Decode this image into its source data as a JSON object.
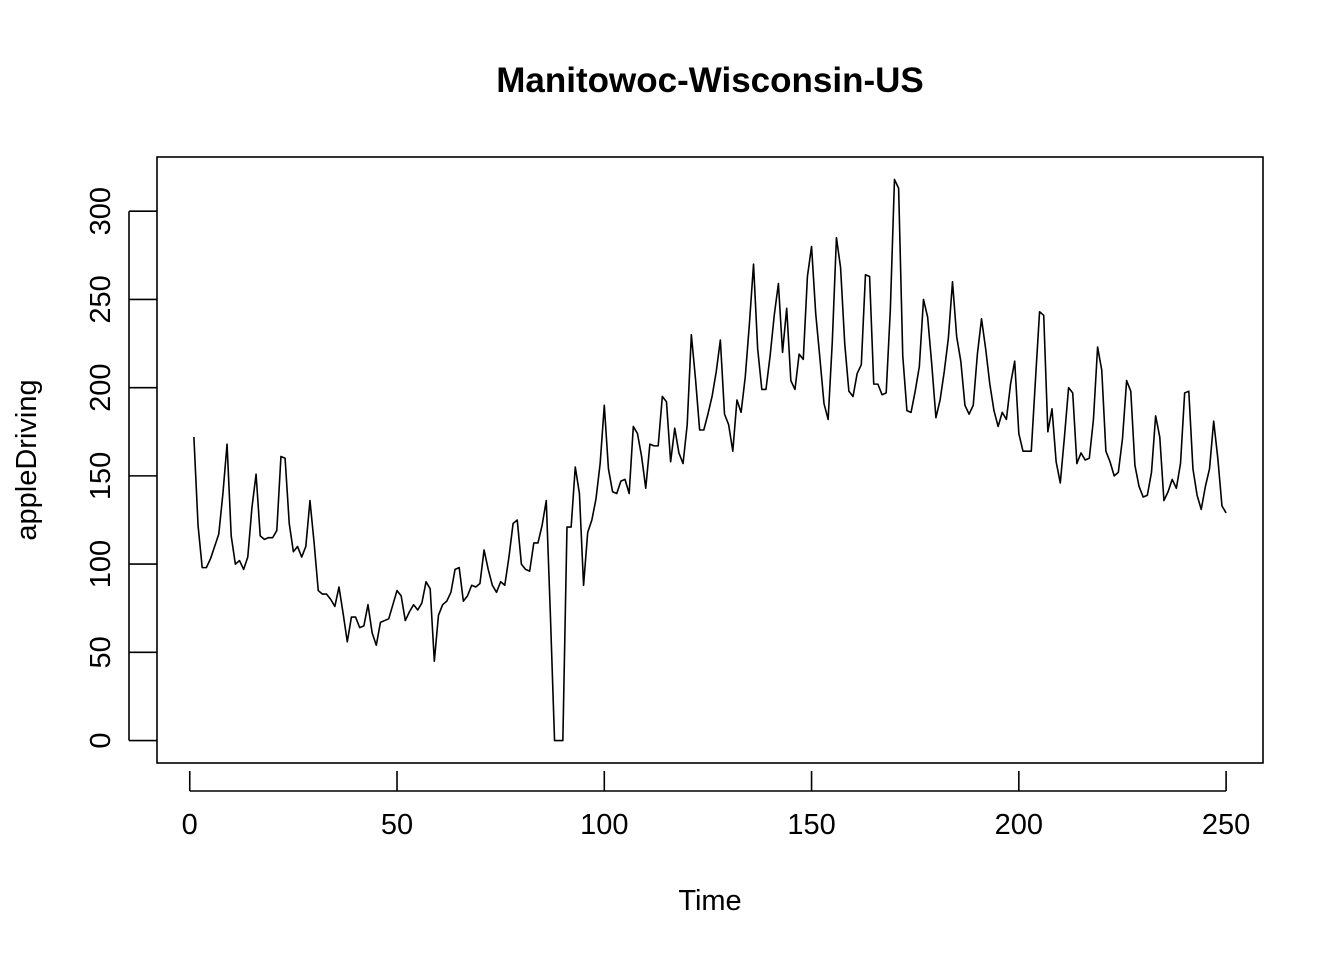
{
  "chart_data": {
    "type": "line",
    "title": "Manitowoc-Wisconsin-US",
    "xlabel": "Time",
    "ylabel": "appleDriving",
    "xlim": [
      -7.9,
      258.9
    ],
    "ylim": [
      -12.72,
      330.72
    ],
    "xticks": [
      0,
      50,
      100,
      150,
      200,
      250
    ],
    "yticks": [
      0,
      50,
      100,
      150,
      200,
      250,
      300
    ],
    "grid": false,
    "legend": "none",
    "x_start": 1,
    "series": [
      {
        "values": [
          172,
          122,
          98,
          98,
          103,
          110,
          117,
          140,
          168,
          116,
          100,
          102,
          97,
          104,
          132,
          151,
          116,
          114,
          115,
          115,
          119,
          161,
          160,
          123,
          107,
          110,
          104,
          110,
          136,
          112,
          85,
          83,
          83,
          80,
          76,
          87,
          72,
          56,
          70,
          70,
          64,
          65,
          77,
          61,
          54,
          67,
          68,
          69,
          77,
          85,
          82,
          68,
          73,
          77,
          74,
          78,
          90,
          86,
          45,
          71,
          77,
          79,
          84,
          97,
          98,
          79,
          82,
          88,
          87,
          89,
          108,
          97,
          88,
          84,
          90,
          88,
          104,
          123,
          125,
          100,
          97,
          96,
          112,
          112,
          122,
          136,
          71,
          0,
          0,
          0,
          121,
          121,
          155,
          140,
          88,
          118,
          125,
          137,
          157,
          190,
          154,
          141,
          140,
          147,
          148,
          140,
          178,
          174,
          161,
          143,
          168,
          167,
          167,
          195,
          192,
          158,
          177,
          163,
          157,
          179,
          230,
          205,
          176,
          176,
          185,
          195,
          209,
          227,
          185,
          179,
          164,
          193,
          186,
          206,
          236,
          270,
          222,
          199,
          199,
          218,
          241,
          259,
          220,
          245,
          204,
          199,
          219,
          216,
          263,
          280,
          242,
          217,
          191,
          182,
          226,
          285,
          268,
          225,
          198,
          195,
          208,
          213,
          264,
          263,
          202,
          202,
          196,
          197,
          244,
          318,
          313,
          218,
          187,
          186,
          198,
          212,
          250,
          240,
          213,
          183,
          193,
          209,
          228,
          260,
          229,
          215,
          190,
          185,
          190,
          219,
          239,
          222,
          202,
          187,
          178,
          186,
          182,
          202,
          215,
          174,
          164,
          164,
          164,
          204,
          243,
          241,
          175,
          188,
          158,
          146,
          172,
          200,
          197,
          157,
          163,
          159,
          160,
          182,
          223,
          210,
          164,
          158,
          150,
          152,
          171,
          204,
          198,
          156,
          144,
          138,
          139,
          152,
          184,
          172,
          136,
          141,
          148,
          143,
          157,
          197,
          198,
          154,
          139,
          131,
          144,
          154,
          181,
          160,
          133,
          129
        ]
      }
    ]
  }
}
